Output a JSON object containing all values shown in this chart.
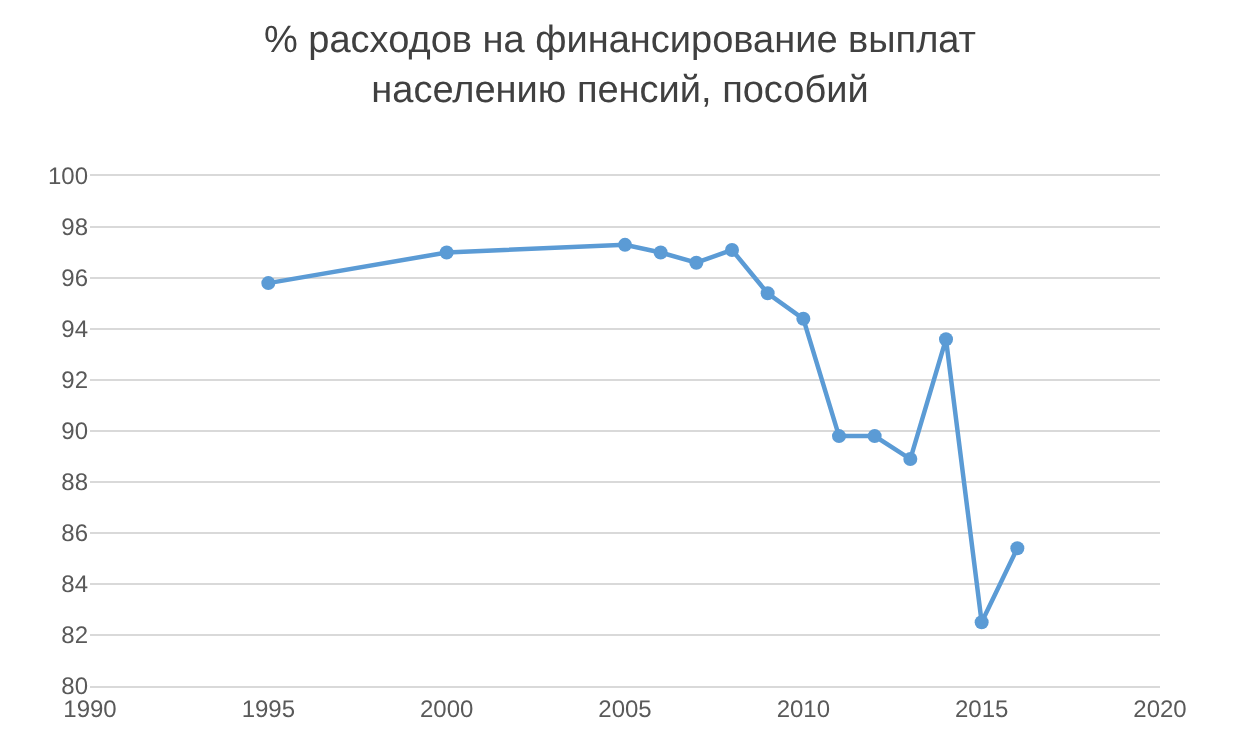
{
  "chart_data": {
    "type": "line",
    "title": "% расходов на финансирование выплат\nнаселению пенсий, пособий",
    "x": [
      1995,
      2000,
      2005,
      2006,
      2007,
      2008,
      2009,
      2010,
      2011,
      2012,
      2013,
      2014,
      2015,
      2016
    ],
    "series": [
      {
        "color": "#5b9bd5",
        "values": [
          95.8,
          97.0,
          97.3,
          97.0,
          96.6,
          97.1,
          95.4,
          94.4,
          89.8,
          89.8,
          88.9,
          93.6,
          82.5,
          85.4
        ]
      }
    ],
    "xlim": [
      1990,
      2020
    ],
    "xticks": [
      1990,
      1995,
      2000,
      2005,
      2010,
      2015,
      2020
    ],
    "ylim": [
      80,
      100
    ],
    "yticks": [
      80,
      82,
      84,
      86,
      88,
      90,
      92,
      94,
      96,
      98,
      100
    ],
    "grid": "y",
    "marker": "circle",
    "line_style": "solid"
  }
}
